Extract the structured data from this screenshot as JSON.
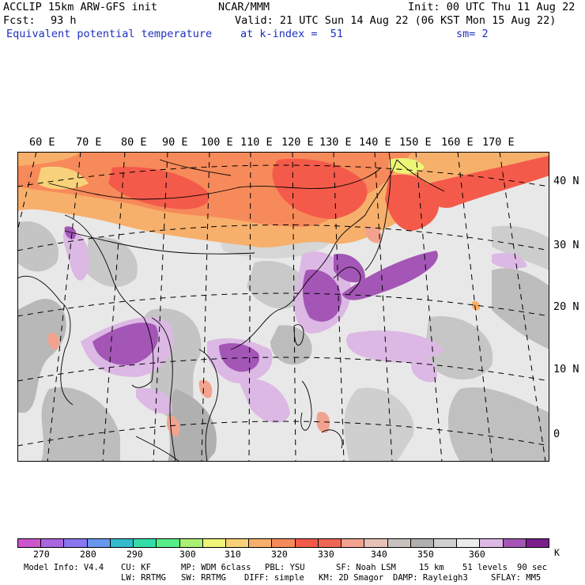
{
  "header": {
    "model": "ACCLIP 15km ARW-GFS init",
    "center": "NCAR/MMM",
    "init": "Init: 00 UTC Thu 11 Aug 22",
    "fcst_label": "Fcst:",
    "fcst_value": "93 h",
    "valid": "Valid: 21 UTC Sun 14 Aug 22 (06 KST Mon 15 Aug 22)",
    "field": "Equivalent potential temperature",
    "level": "at k-index =  51",
    "smooth": "sm= 2"
  },
  "map": {
    "lon_labels": [
      "60 E",
      "70 E",
      "80 E",
      "90 E",
      "100 E",
      "110 E",
      "120 E",
      "130 E",
      "140 E",
      "150 E",
      "160 E",
      "170 E"
    ],
    "lat_labels": [
      "40 N",
      "30 N",
      "20 N",
      "10 N",
      "0"
    ]
  },
  "colorbar": {
    "unit": "K",
    "colors": [
      "#cc55cc",
      "#aa66dd",
      "#8877ee",
      "#6699ee",
      "#33bbcc",
      "#33ddaa",
      "#55ee88",
      "#aaf077",
      "#eef577",
      "#f8d27a",
      "#f7b06b",
      "#f78a5a",
      "#f45a4a",
      "#f06655",
      "#f2a38f",
      "#e8c2b4",
      "#c8c2be",
      "#b0b0b0",
      "#d0d0d0",
      "#ececec",
      "#dcb8e4",
      "#a356b5",
      "#7b1e8c"
    ],
    "ticks": [
      "270",
      "280",
      "290",
      "300",
      "310",
      "320",
      "330",
      "340",
      "350",
      "360"
    ]
  },
  "footer": {
    "line1": [
      "Model Info: V4.4",
      "CU: KF",
      "MP: WDM 6class",
      "PBL: YSU",
      "SF: Noah LSM",
      "15 km",
      "51 levels",
      "90 sec"
    ],
    "line2": [
      "LW: RRTMG",
      "SW: RRTMG",
      "DIFF: simple",
      "KM: 2D Smagor",
      "DAMP: Rayleigh3",
      "SFLAY: MM5"
    ]
  }
}
